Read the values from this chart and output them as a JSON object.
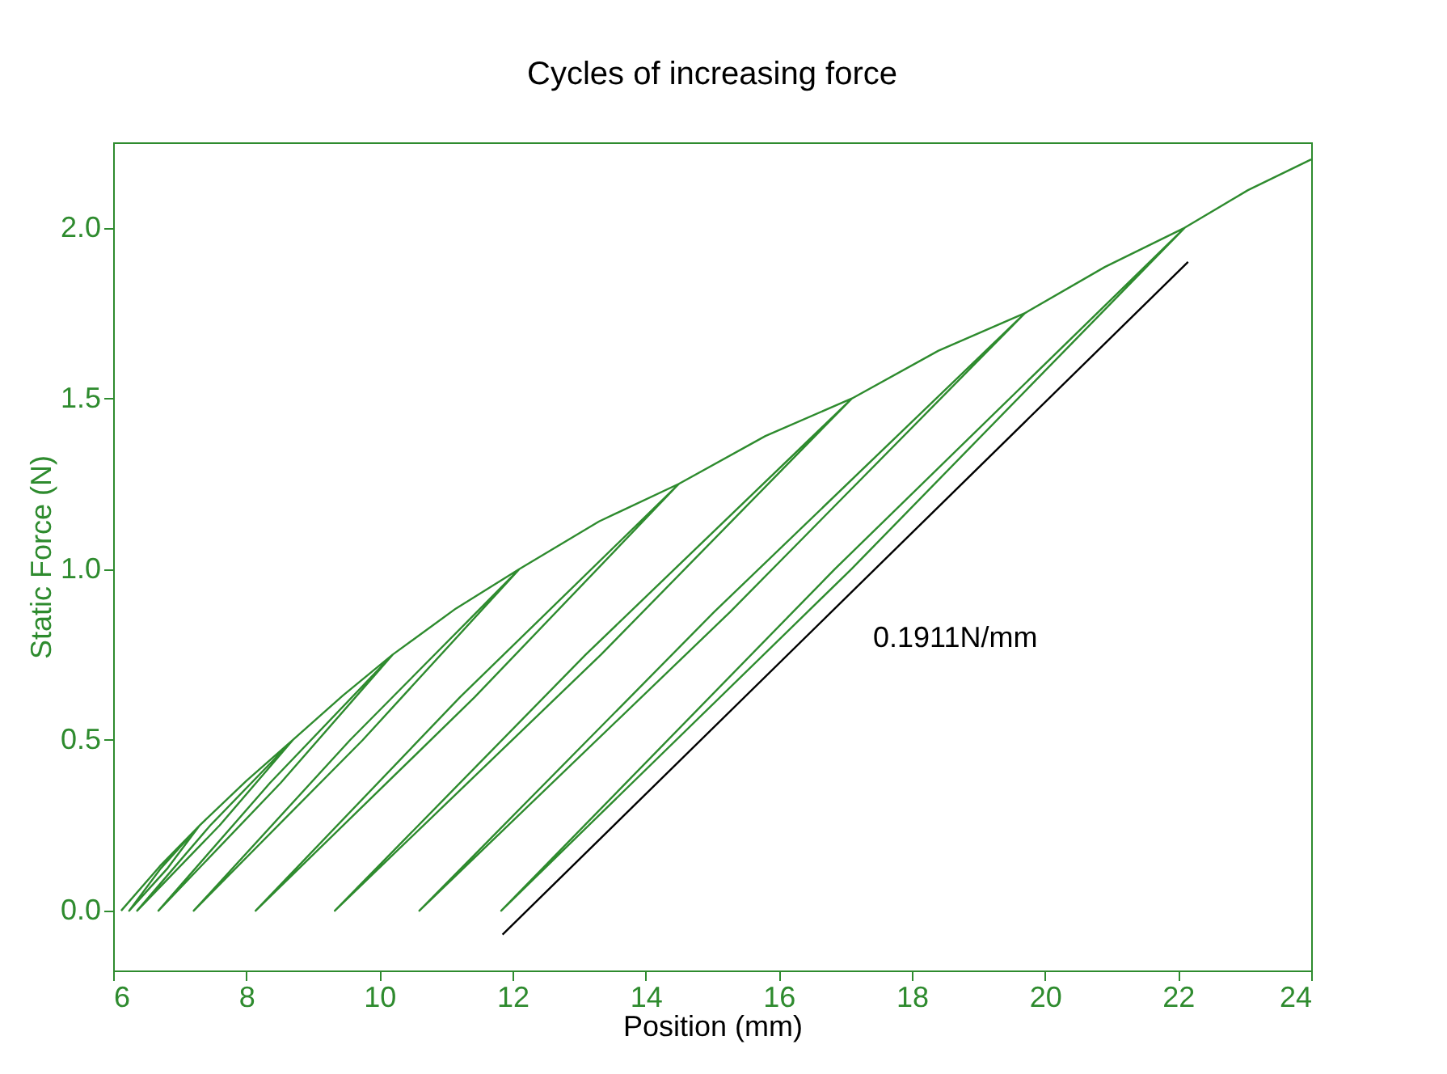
{
  "chart_data": {
    "type": "line",
    "title": "Cycles of increasing force",
    "xlabel": "Position (mm)",
    "ylabel": "Static Force (N)",
    "xlim": [
      6,
      24
    ],
    "xticks": [
      6,
      8,
      10,
      12,
      14,
      16,
      18,
      20,
      22,
      24
    ],
    "ylim": [
      -0.175,
      2.25
    ],
    "yticks": [
      {
        "value": 0,
        "label": "0.0"
      },
      0.5,
      {
        "value": 1,
        "label": "1.0"
      },
      1.5,
      {
        "value": 2,
        "label": "2.0"
      }
    ],
    "series": [
      {
        "color": "#2e8b2e",
        "x": [
          6.12,
          6.7,
          7.3,
          6.82,
          6.24,
          6.72,
          7.3,
          8.0,
          8.7,
          7.6,
          6.36,
          7.46,
          8.7,
          9.45,
          10.2,
          8.52,
          6.68,
          8.36,
          10.2,
          11.15,
          12.1,
          9.75,
          7.21,
          9.56,
          12.1,
          13.3,
          14.5,
          11.43,
          8.14,
          11.21,
          14.5,
          15.8,
          17.1,
          13.33,
          9.33,
          13.1,
          17.1,
          18.4,
          19.7,
          15.27,
          10.6,
          15.03,
          19.7,
          20.9,
          22.1,
          17.09,
          11.83,
          16.84,
          22.1,
          23.05,
          24
        ],
        "values": [
          0,
          0.13,
          0.25,
          0.125,
          0,
          0.125,
          0.25,
          0.38,
          0.5,
          0.25,
          0,
          0.25,
          0.5,
          0.63,
          0.75,
          0.375,
          0,
          0.375,
          0.75,
          0.885,
          1.0,
          0.5,
          0,
          0.5,
          1.0,
          1.14,
          1.25,
          0.625,
          0,
          0.625,
          1.25,
          1.39,
          1.5,
          0.75,
          0,
          0.75,
          1.5,
          1.64,
          1.75,
          0.875,
          0,
          0.875,
          1.75,
          1.885,
          2.0,
          1.0,
          0,
          1.0,
          2.0,
          2.11,
          2.2
        ]
      },
      {
        "type": "line",
        "color": "#000000",
        "x": [
          11.85,
          22.15
        ],
        "values": [
          -0.07,
          1.9
        ]
      }
    ],
    "annotations": [
      "0.1911N/mm"
    ]
  }
}
